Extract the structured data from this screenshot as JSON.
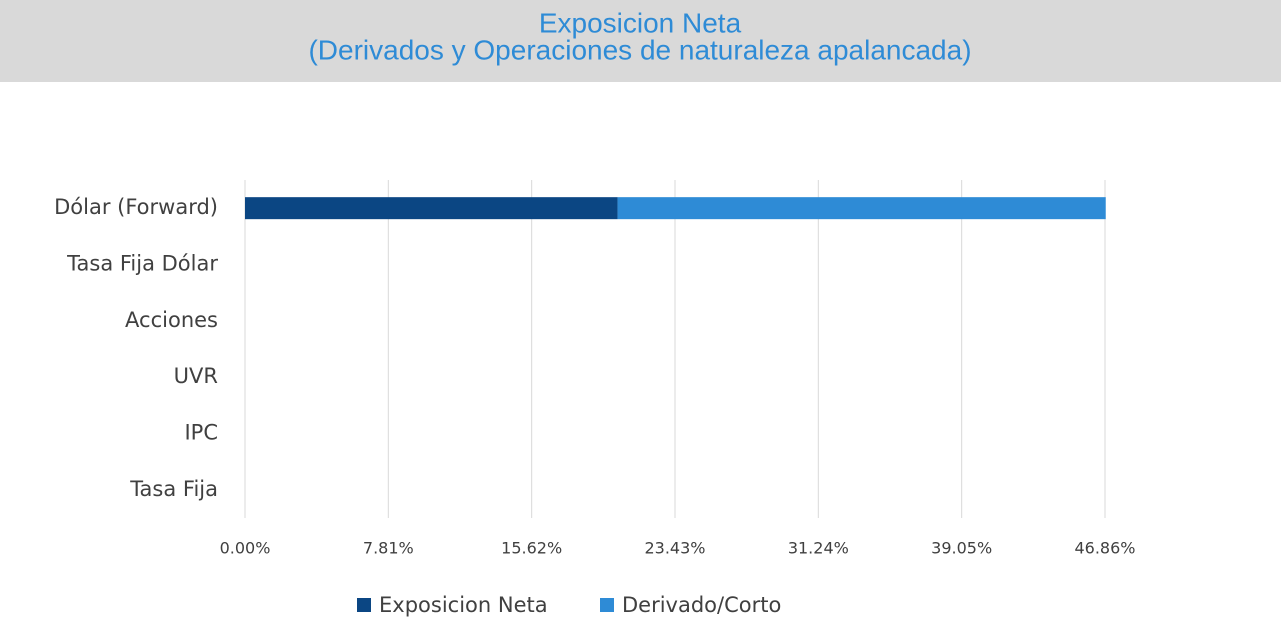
{
  "chart_data": {
    "type": "stacked-barh",
    "title": "Exposicion Neta",
    "subtitle": "(Derivados y Operaciones de naturaleza apalancada)",
    "categories": [
      "Dólar (Forward)",
      "Tasa Fija Dólar",
      "Acciones",
      "UVR",
      "IPC",
      "Tasa Fija"
    ],
    "series": [
      {
        "name": "Exposicion Neta",
        "color": "#0b4683",
        "values": [
          20.3,
          0,
          0,
          0,
          0,
          0
        ]
      },
      {
        "name": "Derivado/Corto",
        "color": "#2e8bd6",
        "values": [
          26.6,
          0,
          0,
          0,
          0,
          0
        ]
      }
    ],
    "xlim": [
      0,
      46.86
    ],
    "xticks": [
      {
        "value": 0,
        "label": "0.00%"
      },
      {
        "value": 7.81,
        "label": "7.81%"
      },
      {
        "value": 15.62,
        "label": "15.62%"
      },
      {
        "value": 23.43,
        "label": "23.43%"
      },
      {
        "value": 31.24,
        "label": "31.24%"
      },
      {
        "value": 39.05,
        "label": "39.05%"
      },
      {
        "value": 46.86,
        "label": "46.86%"
      }
    ],
    "grid": true,
    "legend": "bottom"
  }
}
